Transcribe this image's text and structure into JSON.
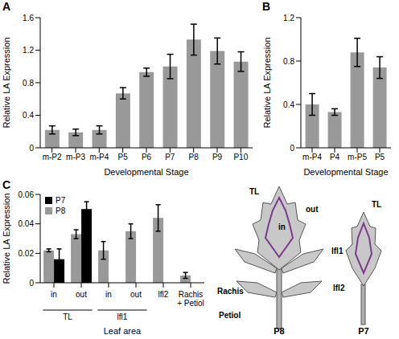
{
  "chart_data": [
    {
      "panel": "A",
      "type": "bar",
      "categories": [
        "m-P2",
        "m-P3",
        "m-P4",
        "P5",
        "P6",
        "P7",
        "P8",
        "P9",
        "P10"
      ],
      "values": [
        0.22,
        0.19,
        0.22,
        0.67,
        0.93,
        1.0,
        1.33,
        1.19,
        1.06
      ],
      "errors": [
        0.05,
        0.04,
        0.05,
        0.07,
        0.05,
        0.15,
        0.19,
        0.16,
        0.12
      ],
      "color": "#999999",
      "xlabel": "Developmental Stage",
      "ylabel": "Relative LA Expression",
      "ylim": [
        0,
        1.6
      ],
      "yticks": [
        0,
        0.4,
        0.8,
        1.2,
        1.6
      ]
    },
    {
      "panel": "B",
      "type": "bar",
      "categories": [
        "m-P4",
        "P4",
        "m-P5",
        "P5"
      ],
      "values": [
        0.4,
        0.33,
        0.88,
        0.74
      ],
      "errors": [
        0.1,
        0.03,
        0.13,
        0.1
      ],
      "color": "#999999",
      "xlabel": "Developmental Stage",
      "ylabel": "Relative LA Expression",
      "ylim": [
        0,
        1.2
      ],
      "yticks": [
        0,
        0.4,
        0.8,
        1.2
      ]
    },
    {
      "panel": "C",
      "type": "bar",
      "categories": [
        "in",
        "out",
        "in",
        "out",
        "lfl2",
        "Rachis + Petiol"
      ],
      "category_groups": [
        "TL",
        "TL",
        "lfl1",
        "lfl1",
        null,
        null
      ],
      "series": [
        {
          "name": "P7",
          "color": "#000000",
          "values": [
            0.016,
            0.05,
            null,
            null,
            null,
            null
          ],
          "errors": [
            0.007,
            0.005,
            null,
            null,
            null,
            null
          ]
        },
        {
          "name": "P8",
          "color": "#999999",
          "values": [
            0.022,
            0.033,
            0.022,
            0.035,
            0.044,
            0.005
          ],
          "errors": [
            0.001,
            0.003,
            0.006,
            0.005,
            0.009,
            0.002
          ]
        }
      ],
      "xlabel": "Leaf area",
      "ylabel": "Relative LA Expression",
      "ylim": [
        0,
        0.06
      ],
      "yticks": [
        0,
        0.02,
        0.04,
        0.06
      ],
      "legend": "upper left"
    }
  ],
  "diagram": {
    "leaves": [
      {
        "name": "P8",
        "labels": [
          "TL",
          "in",
          "out",
          "lfl1",
          "lfl2",
          "Rachis",
          "Petiol"
        ]
      },
      {
        "name": "P7",
        "labels": [
          "TL"
        ]
      }
    ]
  }
}
